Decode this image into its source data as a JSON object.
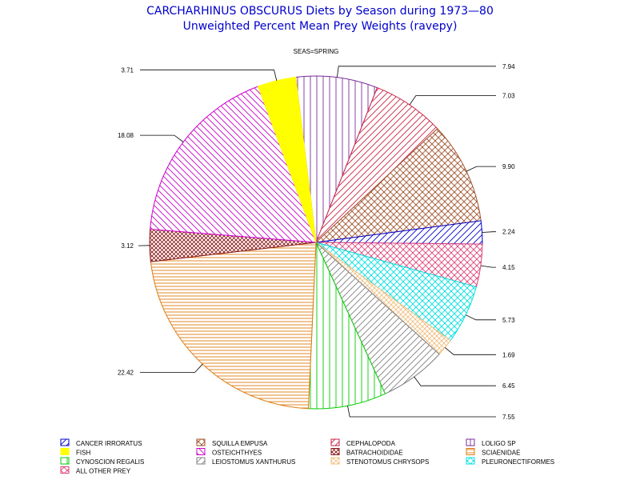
{
  "chart_data": {
    "type": "pie",
    "title": "CARCHARHINUS OBSCURUS Diets by Season during 1973—80",
    "subtitle": "Unweighted Percent Mean Prey Weights (ravepy)",
    "group_label": "SEAS=SPRING",
    "colors": {
      "title": "#0000cc",
      "CANCER IRRORATUS": "#0000cc",
      "SQUILLA EMPUSA": "#a0522d",
      "CEPHALOPODA": "#cc2244",
      "LOLIGO SP": "#7a2c9a",
      "FISH": "#ffff00",
      "OSTEICHTHYES": "#cc00cc",
      "BATRACHOIDIDAE": "#8b1a1a",
      "SCIAENIDAE": "#e07b10",
      "CYNOSCION REGALIS": "#00cc00",
      "LEIOSTOMUS XANTHURUS": "#808080",
      "STENOTOMUS CHRYSOPS": "#f0c080",
      "PLEURONECTIFORMES": "#00e0e0",
      "ALL OTHER PREY": "#e0407a"
    },
    "slices": [
      {
        "label": "LOLIGO SP",
        "value": 7.94,
        "value_label": "7.94",
        "pattern": "vertical"
      },
      {
        "label": "CEPHALOPODA",
        "value": 7.03,
        "value_label": "7.03",
        "pattern": "diag-up"
      },
      {
        "label": "SQUILLA EMPUSA",
        "value": 9.9,
        "value_label": "9.90",
        "pattern": "cross"
      },
      {
        "label": "CANCER IRRORATUS",
        "value": 2.24,
        "value_label": "2.24",
        "pattern": "diag-up"
      },
      {
        "label": "ALL OTHER PREY",
        "value": 4.15,
        "value_label": "4.15",
        "pattern": "cross"
      },
      {
        "label": "PLEURONECTIFORMES",
        "value": 5.73,
        "value_label": "5.73",
        "pattern": "cross"
      },
      {
        "label": "STENOTOMUS CHRYSOPS",
        "value": 1.69,
        "value_label": "1.69",
        "pattern": "cross-fine"
      },
      {
        "label": "LEIOSTOMUS XANTHURUS",
        "value": 6.45,
        "value_label": "6.45",
        "pattern": "diag-up"
      },
      {
        "label": "CYNOSCION REGALIS",
        "value": 7.55,
        "value_label": "7.55",
        "pattern": "vertical"
      },
      {
        "label": "SCIAENIDAE",
        "value": 22.42,
        "value_label": "22.42",
        "pattern": "horizontal"
      },
      {
        "label": "BATRACHOIDIDAE",
        "value": 3.12,
        "value_label": "3.12",
        "pattern": "cross-dense"
      },
      {
        "label": "OSTEICHTHYES",
        "value": 18.08,
        "value_label": "18.08",
        "pattern": "diag-down"
      },
      {
        "label": "FISH",
        "value": 3.71,
        "value_label": "3.71",
        "pattern": "solid"
      }
    ],
    "legend": {
      "placement": "bottom",
      "entries": [
        {
          "label": "CANCER IRRORATUS",
          "pattern": "diag-up"
        },
        {
          "label": "SQUILLA EMPUSA",
          "pattern": "cross"
        },
        {
          "label": "CEPHALOPODA",
          "pattern": "diag-up"
        },
        {
          "label": "LOLIGO SP",
          "pattern": "vertical"
        },
        {
          "label": "FISH",
          "pattern": "solid"
        },
        {
          "label": "OSTEICHTHYES",
          "pattern": "diag-down"
        },
        {
          "label": "BATRACHOIDIDAE",
          "pattern": "cross-dense"
        },
        {
          "label": "SCIAENIDAE",
          "pattern": "horizontal"
        },
        {
          "label": "CYNOSCION REGALIS",
          "pattern": "vertical"
        },
        {
          "label": "LEIOSTOMUS XANTHURUS",
          "pattern": "diag-up"
        },
        {
          "label": "STENOTOMUS CHRYSOPS",
          "pattern": "cross-fine"
        },
        {
          "label": "PLEURONECTIFORMES",
          "pattern": "cross"
        },
        {
          "label": "ALL OTHER PREY",
          "pattern": "cross"
        }
      ]
    }
  }
}
